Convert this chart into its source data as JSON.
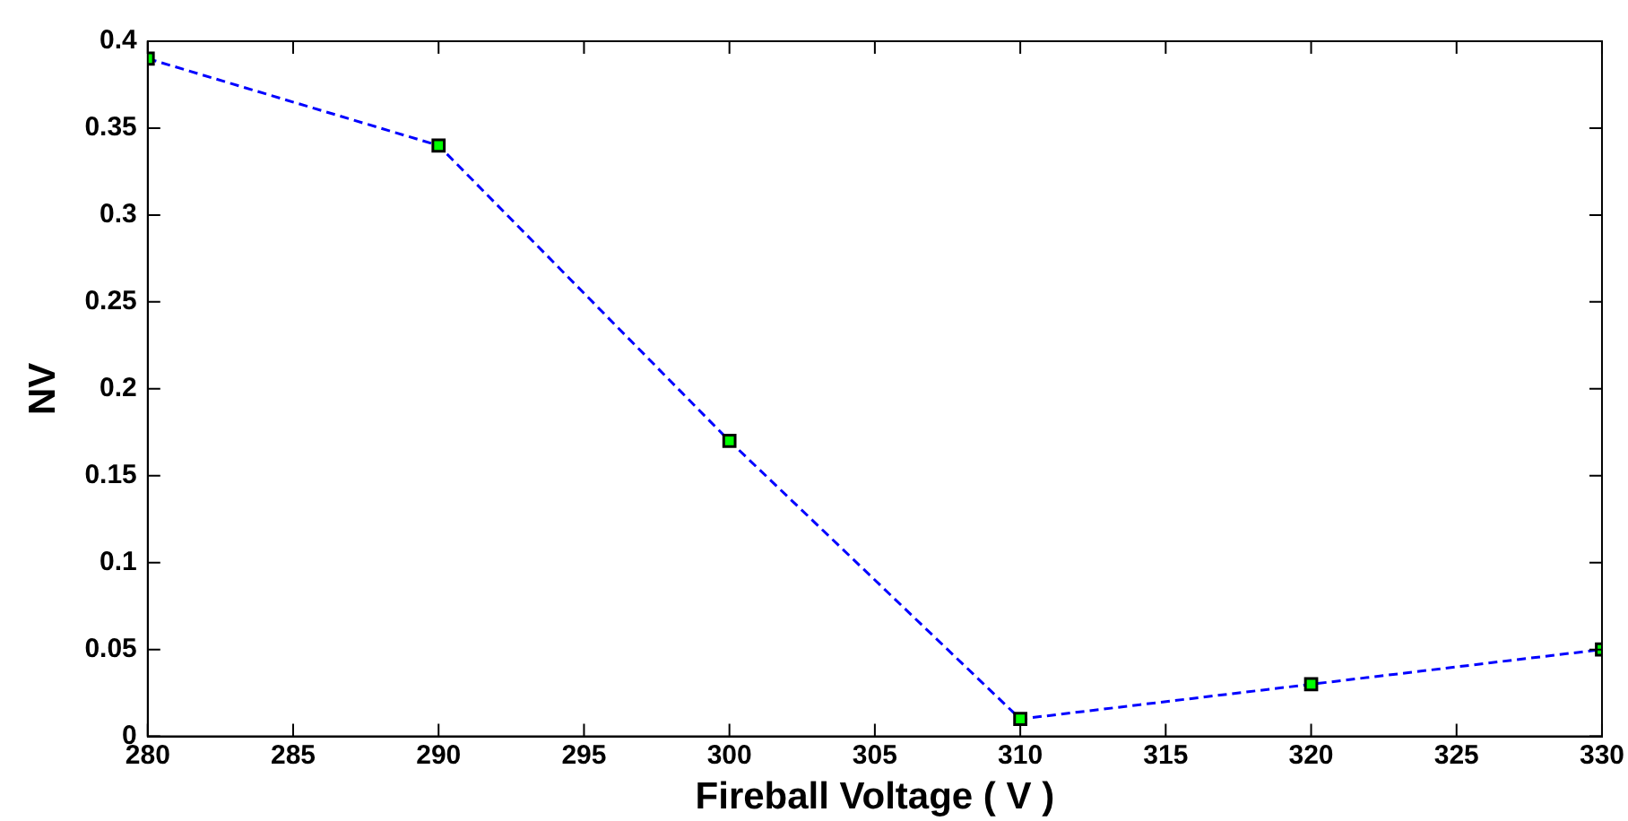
{
  "chart_data": {
    "type": "line",
    "xlabel": "Fireball Voltage ( V )",
    "ylabel": "NV",
    "x": [
      280,
      290,
      300,
      310,
      320,
      330
    ],
    "series": [
      {
        "color": "#0000ff",
        "values": [
          0.39,
          0.34,
          0.17,
          0.01,
          0.03,
          0.05
        ]
      }
    ],
    "marker": "square",
    "line_style": "dashed",
    "grid": false,
    "legend": false,
    "xlim": [
      280,
      330
    ],
    "xticks": [
      280,
      285,
      290,
      295,
      300,
      305,
      310,
      315,
      320,
      325,
      330
    ],
    "ylim": [
      0,
      0.4
    ],
    "yticks": [
      0,
      0.05,
      0.1,
      0.15,
      0.2,
      0.25,
      0.3,
      0.35,
      0.4
    ]
  }
}
